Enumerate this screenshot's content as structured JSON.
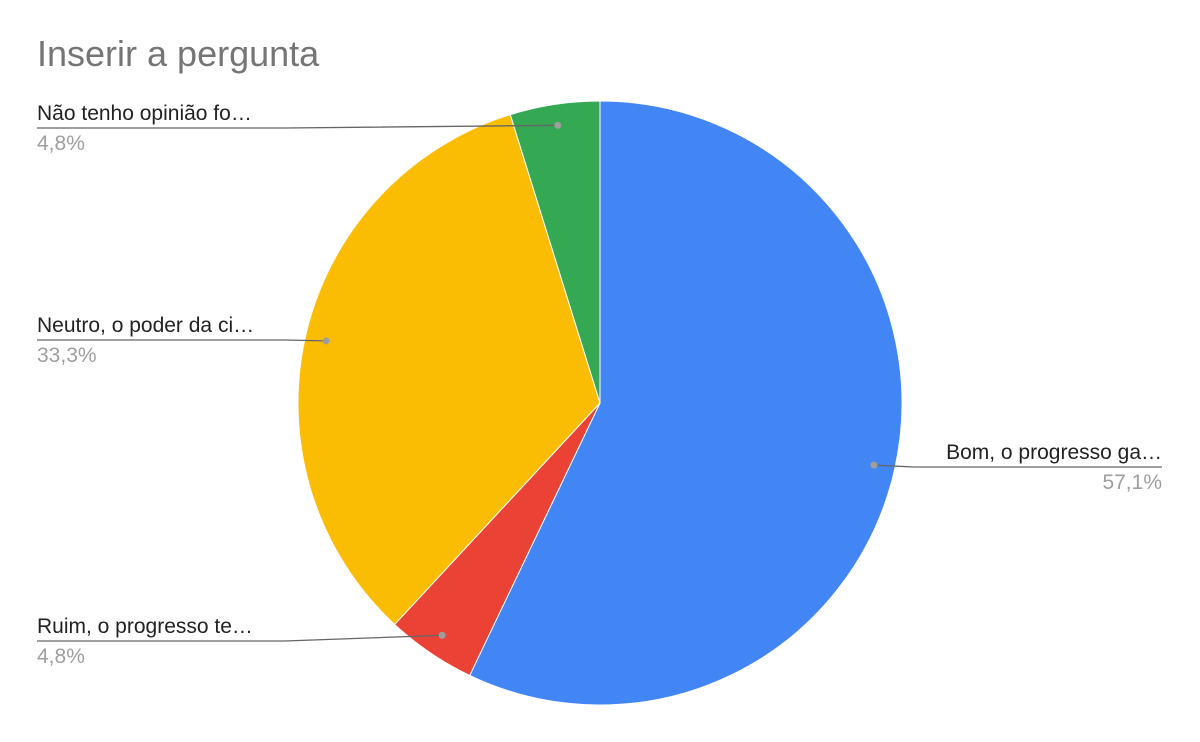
{
  "chart_data": {
    "type": "pie",
    "title": "Inserir a pergunta",
    "slices": [
      {
        "label": "Bom, o progresso ga…",
        "value": 57.1,
        "display": "57,1%",
        "color": "#4285F4"
      },
      {
        "label": "Ruim, o progresso te…",
        "value": 4.8,
        "display": "4,8%",
        "color": "#EA4335"
      },
      {
        "label": "Neutro, o poder da ci…",
        "value": 33.3,
        "display": "33,3%",
        "color": "#FBBC04"
      },
      {
        "label": "Não tenho opinião fo…",
        "value": 4.8,
        "display": "4,8%",
        "color": "#34A853"
      }
    ]
  }
}
